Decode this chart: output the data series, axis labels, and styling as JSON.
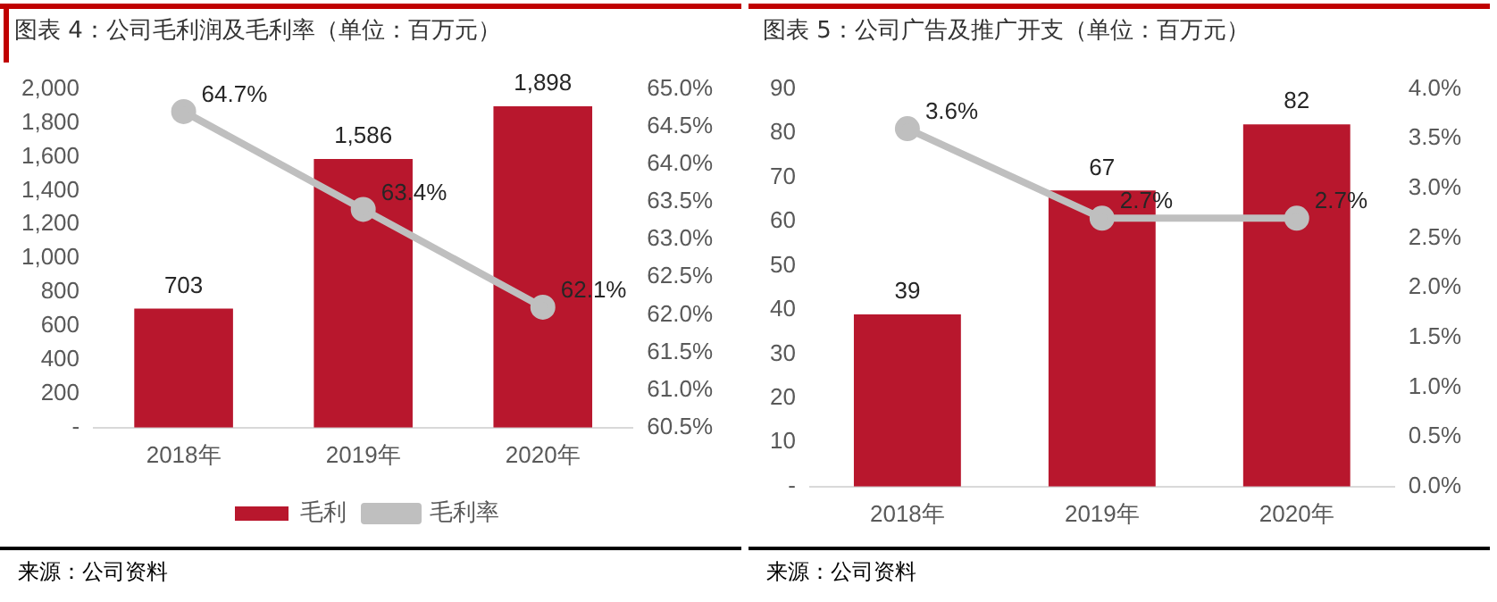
{
  "chart_data": [
    {
      "type": "bar",
      "title": "图表 4：公司毛利润及毛利率（单位：百万元）",
      "categories": [
        "2018年",
        "2019年",
        "2020年"
      ],
      "series": [
        {
          "name": "毛利",
          "color": "#b8172d",
          "values": [
            703,
            1586,
            1898
          ],
          "value_labels": [
            "703",
            "1,586",
            "1,898"
          ]
        },
        {
          "name": "毛利率",
          "type": "line",
          "axis": "y2",
          "color": "#bfbfbf",
          "values": [
            64.7,
            63.4,
            62.1
          ],
          "value_labels": [
            "64.7%",
            "63.4%",
            "62.1%"
          ]
        }
      ],
      "ylim": [
        0,
        2000
      ],
      "yticks": [
        {
          "value": 0,
          "label": "-"
        },
        {
          "value": 200,
          "label": "200"
        },
        {
          "value": 400,
          "label": "400"
        },
        {
          "value": 600,
          "label": "600"
        },
        {
          "value": 800,
          "label": "800"
        },
        {
          "value": 1000,
          "label": "1,000"
        },
        {
          "value": 1200,
          "label": "1,200"
        },
        {
          "value": 1400,
          "label": "1,400"
        },
        {
          "value": 1600,
          "label": "1,600"
        },
        {
          "value": 1800,
          "label": "1,800"
        },
        {
          "value": 2000,
          "label": "2,000"
        }
      ],
      "y2lim": [
        60.5,
        65
      ],
      "y2ticks": [
        {
          "value": 60.5,
          "label": "60.5%"
        },
        {
          "value": 61,
          "label": "61.0%"
        },
        {
          "value": 61.5,
          "label": "61.5%"
        },
        {
          "value": 62,
          "label": "62.0%"
        },
        {
          "value": 62.5,
          "label": "62.5%"
        },
        {
          "value": 63,
          "label": "63.0%"
        },
        {
          "value": 63.5,
          "label": "63.5%"
        },
        {
          "value": 64,
          "label": "64.0%"
        },
        {
          "value": 64.5,
          "label": "64.5%"
        },
        {
          "value": 65,
          "label": "65.0%"
        }
      ],
      "marker": "circle",
      "legend": "bottom",
      "annotations": [
        "来源：公司资料"
      ]
    },
    {
      "type": "bar",
      "title": "图表 5：公司广告及推广开支（单位：百万元）",
      "categories": [
        "2018年",
        "2019年",
        "2020年"
      ],
      "series": [
        {
          "color": "#b8172d",
          "values": [
            39,
            67,
            82
          ],
          "value_labels": [
            "39",
            "67",
            "82"
          ]
        },
        {
          "type": "line",
          "axis": "y2",
          "color": "#bfbfbf",
          "values": [
            3.6,
            2.7,
            2.7
          ],
          "value_labels": [
            "3.6%",
            "2.7%",
            "2.7%"
          ]
        }
      ],
      "ylim": [
        0,
        90
      ],
      "yticks": [
        {
          "value": 0,
          "label": "-"
        },
        10,
        20,
        30,
        40,
        50,
        60,
        70,
        80,
        90
      ],
      "y2lim": [
        0,
        4
      ],
      "y2ticks": [
        {
          "value": 0,
          "label": "0.0%"
        },
        {
          "value": 0.5,
          "label": "0.5%"
        },
        {
          "value": 1,
          "label": "1.0%"
        },
        {
          "value": 1.5,
          "label": "1.5%"
        },
        {
          "value": 2,
          "label": "2.0%"
        },
        {
          "value": 2.5,
          "label": "2.5%"
        },
        {
          "value": 3,
          "label": "3.0%"
        },
        {
          "value": 3.5,
          "label": "3.5%"
        },
        {
          "value": 4,
          "label": "4.0%"
        }
      ],
      "marker": "circle",
      "annotations": [
        "来源：公司资料"
      ]
    }
  ]
}
